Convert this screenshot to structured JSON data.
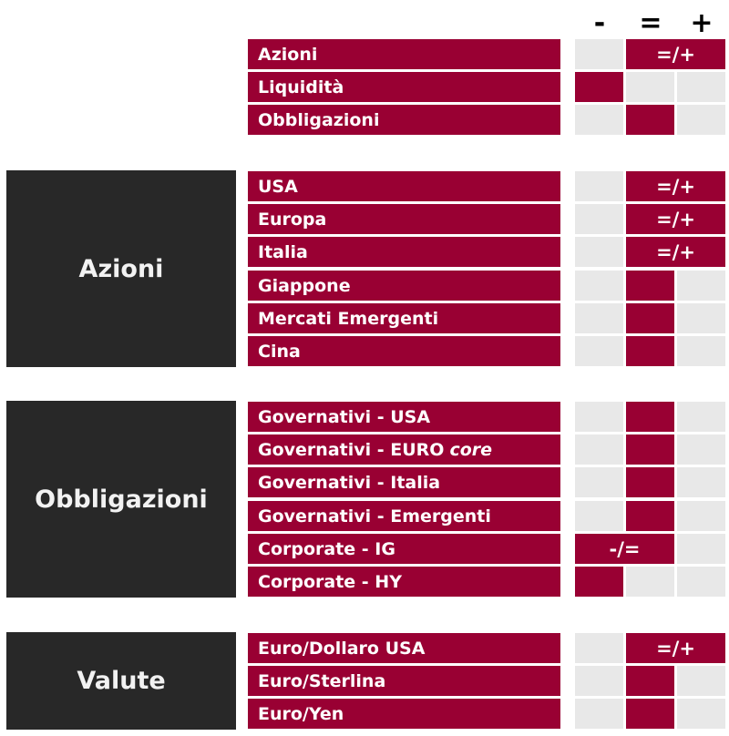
{
  "header": {
    "minus": "-",
    "equal": "=",
    "plus": "+"
  },
  "top_rows": [
    {
      "label": "Azioni",
      "rating": "=/+"
    },
    {
      "label": "Liquidità",
      "rating": "-"
    },
    {
      "label": "Obbligazioni",
      "rating": "="
    }
  ],
  "groups": [
    {
      "title": "Azioni",
      "rows": [
        {
          "label": "USA",
          "rating": "=/+"
        },
        {
          "label": "Europa",
          "rating": "=/+"
        },
        {
          "label": "Italia",
          "rating": "=/+"
        },
        {
          "label": "Giappone",
          "rating": "="
        },
        {
          "label": "Mercati Emergenti",
          "rating": "="
        },
        {
          "label": "Cina",
          "rating": "="
        }
      ]
    },
    {
      "title": "Obbligazioni",
      "rows": [
        {
          "label": "Governativi - USA",
          "rating": "="
        },
        {
          "label": "Governativi - EURO",
          "label_italic": "core",
          "rating": "="
        },
        {
          "label": "Governativi - Italia",
          "rating": "="
        },
        {
          "label": "Governativi - Emergenti",
          "rating": "="
        },
        {
          "label": "Corporate - IG",
          "rating": "-/="
        },
        {
          "label": "Corporate - HY",
          "rating": "-"
        }
      ]
    },
    {
      "title": "Valute",
      "rows": [
        {
          "label": "Euro/Dollaro USA",
          "rating": "=/+"
        },
        {
          "label": "Euro/Sterlina",
          "rating": "="
        },
        {
          "label": "Euro/Yen",
          "rating": "="
        }
      ]
    }
  ],
  "colors": {
    "row_bg": "#990033",
    "category_bg": "#282828",
    "cell_bg": "#e8e8e8"
  }
}
